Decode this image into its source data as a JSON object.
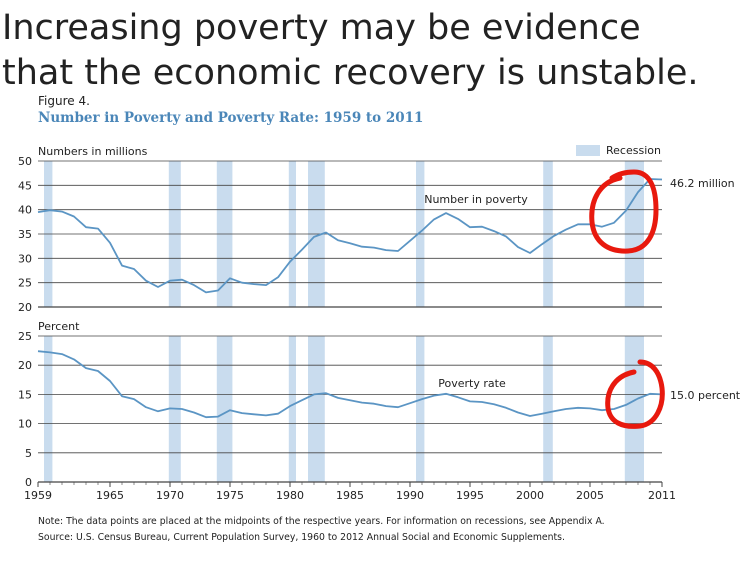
{
  "headline": {
    "line1": "Increasing poverty may be evidence",
    "line2": "that the economic recovery is unstable."
  },
  "figure": {
    "label": "Figure 4.",
    "title": "Number in Poverty and Poverty Rate: 1959 to 2011"
  },
  "notes": {
    "note": "Note: The data points are placed at the midpoints of the respective years. For information on recessions, see Appendix A.",
    "source": "Source: U.S. Census Bureau, Current Population Survey, 1960 to 2012 Annual Social and Economic Supplements."
  },
  "colors": {
    "line": "#5b95c4",
    "recession": "#c9dcee",
    "grid": "#444444",
    "annotation": "#e8190e",
    "title": "#4a86b8"
  },
  "chart_data": [
    {
      "type": "line",
      "ylabel": "Numbers in millions",
      "ylim": [
        20,
        50
      ],
      "yticks": [
        20,
        25,
        30,
        35,
        40,
        45,
        50
      ],
      "series": [
        {
          "name": "Number in poverty",
          "x": [
            1959,
            1960,
            1961,
            1962,
            1963,
            1964,
            1965,
            1966,
            1967,
            1968,
            1969,
            1970,
            1971,
            1972,
            1973,
            1974,
            1975,
            1976,
            1977,
            1978,
            1979,
            1980,
            1981,
            1982,
            1983,
            1984,
            1985,
            1986,
            1987,
            1988,
            1989,
            1990,
            1991,
            1992,
            1993,
            1994,
            1995,
            1996,
            1997,
            1998,
            1999,
            2000,
            2001,
            2002,
            2003,
            2004,
            2005,
            2006,
            2007,
            2008,
            2009,
            2010,
            2011
          ],
          "values": [
            39.5,
            39.9,
            39.6,
            38.6,
            36.4,
            36.1,
            33.2,
            28.5,
            27.8,
            25.4,
            24.1,
            25.4,
            25.6,
            24.5,
            23.0,
            23.4,
            25.9,
            25.0,
            24.7,
            24.5,
            26.1,
            29.3,
            31.8,
            34.4,
            35.3,
            33.7,
            33.1,
            32.4,
            32.2,
            31.7,
            31.5,
            33.6,
            35.7,
            38.0,
            39.3,
            38.1,
            36.4,
            36.5,
            35.6,
            34.5,
            32.3,
            31.1,
            32.9,
            34.6,
            35.9,
            37.0,
            37.0,
            36.5,
            37.3,
            39.8,
            43.6,
            46.3,
            46.2
          ]
        }
      ],
      "end_label": "46.2 million"
    },
    {
      "type": "line",
      "ylabel": "Percent",
      "ylim": [
        0,
        25
      ],
      "yticks": [
        0,
        5,
        10,
        15,
        20,
        25
      ],
      "series": [
        {
          "name": "Poverty rate",
          "x": [
            1959,
            1960,
            1961,
            1962,
            1963,
            1964,
            1965,
            1966,
            1967,
            1968,
            1969,
            1970,
            1971,
            1972,
            1973,
            1974,
            1975,
            1976,
            1977,
            1978,
            1979,
            1980,
            1981,
            1982,
            1983,
            1984,
            1985,
            1986,
            1987,
            1988,
            1989,
            1990,
            1991,
            1992,
            1993,
            1994,
            1995,
            1996,
            1997,
            1998,
            1999,
            2000,
            2001,
            2002,
            2003,
            2004,
            2005,
            2006,
            2007,
            2008,
            2009,
            2010,
            2011
          ],
          "values": [
            22.4,
            22.2,
            21.9,
            21.0,
            19.5,
            19.0,
            17.3,
            14.7,
            14.2,
            12.8,
            12.1,
            12.6,
            12.5,
            11.9,
            11.1,
            11.2,
            12.3,
            11.8,
            11.6,
            11.4,
            11.7,
            13.0,
            14.0,
            15.0,
            15.2,
            14.4,
            14.0,
            13.6,
            13.4,
            13.0,
            12.8,
            13.5,
            14.2,
            14.8,
            15.1,
            14.5,
            13.8,
            13.7,
            13.3,
            12.7,
            11.9,
            11.3,
            11.7,
            12.1,
            12.5,
            12.7,
            12.6,
            12.3,
            12.5,
            13.2,
            14.3,
            15.1,
            15.0
          ]
        }
      ],
      "end_label": "15.0 percent"
    }
  ],
  "x_axis": {
    "min": 1959,
    "max": 2011,
    "tick_labels": [
      "1959",
      "1965",
      "1970",
      "1975",
      "1980",
      "1985",
      "1990",
      "1995",
      "2000",
      "2005",
      "2011"
    ],
    "tick_values": [
      1959,
      1965,
      1970,
      1975,
      1980,
      1985,
      1990,
      1995,
      2000,
      2005,
      2011
    ]
  },
  "recessions": [
    [
      1959.5,
      1960.2
    ],
    [
      1969.9,
      1970.9
    ],
    [
      1973.9,
      1975.2
    ],
    [
      1979.9,
      1980.5
    ],
    [
      1981.5,
      1982.9
    ],
    [
      1990.5,
      1991.2
    ],
    [
      2001.1,
      2001.9
    ],
    [
      2007.9,
      2009.5
    ]
  ],
  "legend": {
    "recession_label": "Recession"
  }
}
